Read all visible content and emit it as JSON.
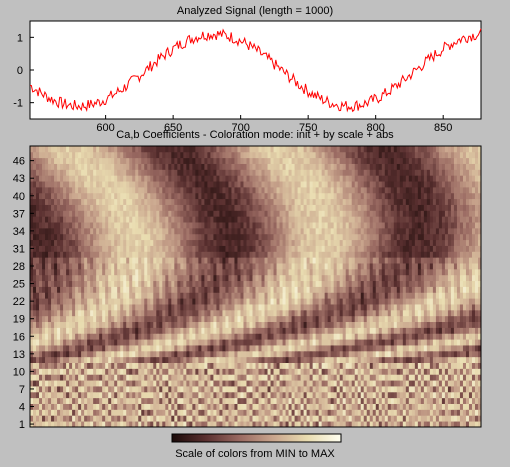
{
  "chart_data": [
    {
      "type": "line",
      "title": "Analyzed Signal (length = 1000)",
      "xlim": [
        544,
        878
      ],
      "ylim": [
        -1.5,
        1.5
      ],
      "xticks": [
        600,
        650,
        700,
        750,
        800,
        850
      ],
      "yticks": [
        1,
        0,
        -1
      ],
      "line_color": "#ff0000",
      "signal": {
        "shape": "noisy sinusoid",
        "amplitude": 1.1,
        "period": 200,
        "phase_peak_x": 680,
        "noise": 0.18,
        "start_x": 544,
        "end_x": 878
      }
    },
    {
      "type": "heatmap",
      "title": "Ca,b Coefficients - Coloration mode: init + by scale + abs",
      "yticks": [
        1,
        4,
        7,
        10,
        13,
        16,
        19,
        22,
        25,
        28,
        31,
        34,
        37,
        40,
        43,
        46
      ],
      "scale_range": [
        1,
        48
      ],
      "colormap": [
        "#1a0a08",
        "#5a3030",
        "#9a6a62",
        "#c9a58d",
        "#e9dcb0",
        "#fffff0"
      ]
    }
  ],
  "colorbar": {
    "label": "Scale of colors from MIN to MAX"
  }
}
